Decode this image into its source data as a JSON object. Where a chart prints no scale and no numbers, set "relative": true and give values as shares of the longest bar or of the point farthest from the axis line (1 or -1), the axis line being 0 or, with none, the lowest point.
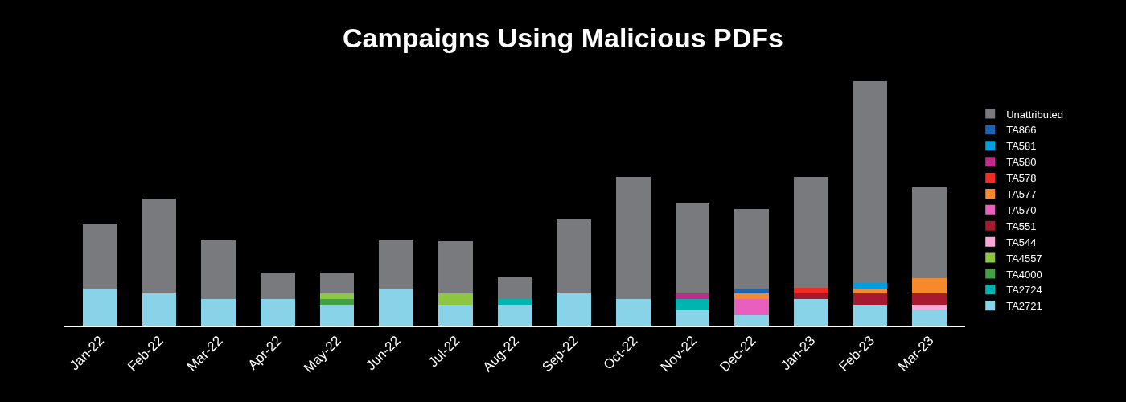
{
  "chart_data": {
    "type": "bar",
    "title": "Campaigns Using Malicious PDFs",
    "stacked": true,
    "relative": true,
    "legend": "right",
    "categories": [
      "Jan-22",
      "Feb-22",
      "Mar-22",
      "Apr-22",
      "May-22",
      "Jun-22",
      "Jul-22",
      "Aug-22",
      "Sep-22",
      "Oct-22",
      "Nov-22",
      "Dec-22",
      "Jan-23",
      "Feb-23",
      "Mar-23"
    ],
    "series": [
      {
        "name": "TA2721",
        "color": "#89d3e8",
        "values": [
          0.152,
          0.13,
          0.109,
          0.109,
          0.087,
          0.152,
          0.087,
          0.087,
          0.13,
          0.109,
          0.065,
          0.043,
          0.109,
          0.087,
          0.065
        ]
      },
      {
        "name": "TA2724",
        "color": "#00b5b0",
        "values": [
          null,
          null,
          null,
          null,
          null,
          null,
          null,
          0.022,
          null,
          null,
          0.043,
          null,
          null,
          null,
          null
        ]
      },
      {
        "name": "TA4000",
        "color": "#44a047",
        "values": [
          null,
          null,
          null,
          null,
          0.022,
          null,
          null,
          null,
          null,
          null,
          null,
          null,
          null,
          null,
          null
        ]
      },
      {
        "name": "TA4557",
        "color": "#8dc641",
        "values": [
          null,
          null,
          null,
          null,
          0.022,
          null,
          0.043,
          null,
          null,
          null,
          null,
          null,
          null,
          null,
          null
        ]
      },
      {
        "name": "TA544",
        "color": "#f7a8d8",
        "values": [
          null,
          null,
          null,
          null,
          null,
          null,
          null,
          null,
          null,
          null,
          null,
          null,
          null,
          null,
          0.022
        ]
      },
      {
        "name": "TA551",
        "color": "#a6192e",
        "values": [
          null,
          null,
          null,
          null,
          null,
          null,
          null,
          null,
          null,
          null,
          null,
          null,
          0.022,
          0.043,
          0.043
        ]
      },
      {
        "name": "TA570",
        "color": "#e95fbd",
        "values": [
          null,
          null,
          null,
          null,
          null,
          null,
          null,
          null,
          null,
          null,
          null,
          0.065,
          null,
          null,
          null
        ]
      },
      {
        "name": "TA577",
        "color": "#f5892b",
        "values": [
          null,
          null,
          null,
          null,
          null,
          null,
          null,
          null,
          null,
          null,
          null,
          0.022,
          null,
          0.022,
          0.065
        ]
      },
      {
        "name": "TA578",
        "color": "#ee2e24",
        "values": [
          null,
          null,
          null,
          null,
          null,
          null,
          null,
          null,
          null,
          null,
          null,
          null,
          0.022,
          null,
          null
        ]
      },
      {
        "name": "TA580",
        "color": "#c02b8a",
        "values": [
          null,
          null,
          null,
          null,
          null,
          null,
          null,
          null,
          null,
          null,
          0.022,
          null,
          null,
          null,
          null
        ]
      },
      {
        "name": "TA581",
        "color": "#009ee0",
        "values": [
          null,
          null,
          null,
          null,
          null,
          null,
          null,
          null,
          null,
          null,
          null,
          null,
          null,
          0.022,
          null
        ]
      },
      {
        "name": "TA866",
        "color": "#1e63b0",
        "values": [
          null,
          null,
          null,
          null,
          null,
          null,
          null,
          null,
          null,
          null,
          null,
          0.022,
          null,
          null,
          null
        ]
      },
      {
        "name": "Unattributed",
        "color": "#797a7e",
        "values": [
          0.261,
          0.391,
          0.239,
          0.109,
          0.087,
          0.196,
          0.217,
          0.087,
          0.304,
          0.5,
          0.37,
          0.326,
          0.457,
          0.826,
          0.37
        ]
      }
    ]
  }
}
